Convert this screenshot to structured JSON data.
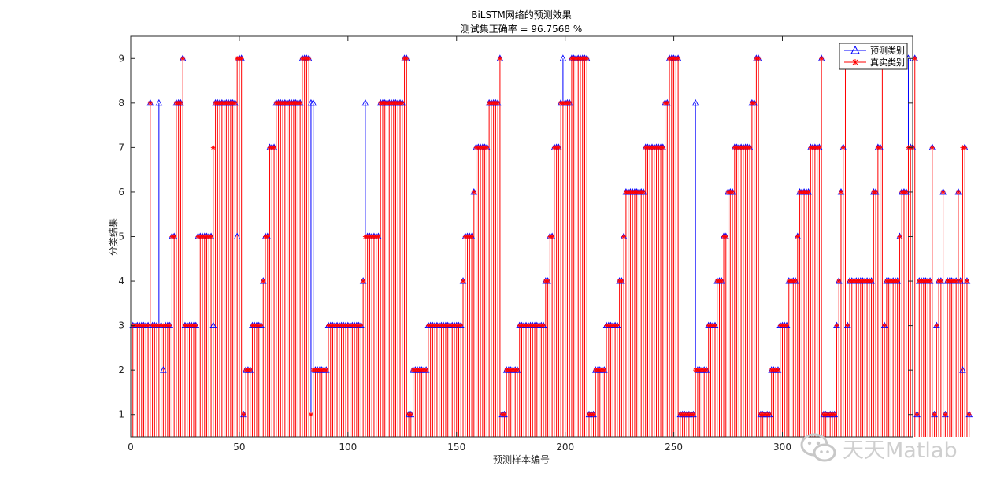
{
  "chart_data": {
    "type": "stem",
    "title": "BiLSTM网络的预测效果",
    "subtitle": "测试集正确率 = 96.7568 %",
    "xlabel": "预测样本编号",
    "ylabel": "分类结果",
    "xlim": [
      0,
      360
    ],
    "ylim": [
      0.5,
      9.5
    ],
    "xticks": [
      "0",
      "50",
      "100",
      "150",
      "200",
      "250",
      "300"
    ],
    "yticks": [
      "1",
      "2",
      "3",
      "4",
      "5",
      "6",
      "7",
      "8",
      "9"
    ],
    "grid": false,
    "legend_position": "top-right",
    "series": [
      {
        "name": "预测类别",
        "color": "#0000ff",
        "marker": "triangle",
        "values": [
          3,
          3,
          3,
          3,
          3,
          3,
          3,
          3,
          8,
          3,
          3,
          3,
          8,
          3,
          2,
          3,
          3,
          3,
          5,
          5,
          8,
          8,
          8,
          9,
          3,
          3,
          3,
          3,
          3,
          3,
          5,
          5,
          5,
          5,
          5,
          5,
          5,
          3,
          8,
          8,
          8,
          8,
          8,
          8,
          8,
          8,
          8,
          8,
          5,
          9,
          9,
          1,
          2,
          2,
          2,
          3,
          3,
          3,
          3,
          3,
          4,
          5,
          5,
          7,
          7,
          7,
          8,
          8,
          8,
          8,
          8,
          8,
          8,
          8,
          8,
          8,
          8,
          8,
          9,
          9,
          9,
          9,
          8,
          8,
          2,
          2,
          2,
          2,
          2,
          2,
          3,
          3,
          3,
          3,
          3,
          3,
          3,
          3,
          3,
          3,
          3,
          3,
          3,
          3,
          3,
          3,
          4,
          8,
          5,
          5,
          5,
          5,
          5,
          5,
          8,
          8,
          8,
          8,
          8,
          8,
          8,
          8,
          8,
          8,
          8,
          9,
          9,
          1,
          1,
          2,
          2,
          2,
          2,
          2,
          2,
          2,
          3,
          3,
          3,
          3,
          3,
          3,
          3,
          3,
          3,
          3,
          3,
          3,
          3,
          3,
          3,
          3,
          4,
          5,
          5,
          5,
          5,
          6,
          7,
          7,
          7,
          7,
          7,
          7,
          8,
          8,
          8,
          8,
          8,
          9,
          1,
          1,
          2,
          2,
          2,
          2,
          2,
          2,
          3,
          3,
          3,
          3,
          3,
          3,
          3,
          3,
          3,
          3,
          3,
          3,
          4,
          4,
          5,
          5,
          7,
          7,
          7,
          8,
          9,
          8,
          8,
          8,
          9,
          9,
          9,
          9,
          9,
          9,
          9,
          9,
          1,
          1,
          1,
          2,
          2,
          2,
          2,
          2,
          3,
          3,
          3,
          3,
          3,
          3,
          4,
          4,
          5,
          6,
          6,
          6,
          6,
          6,
          6,
          6,
          6,
          6,
          7,
          7,
          7,
          7,
          7,
          7,
          7,
          7,
          7,
          8,
          8,
          9,
          9,
          9,
          9,
          9,
          1,
          1,
          1,
          1,
          1,
          1,
          1,
          8,
          2,
          2,
          2,
          2,
          2,
          3,
          3,
          3,
          3,
          4,
          4,
          4,
          5,
          5,
          6,
          6,
          6,
          7,
          7,
          7,
          7,
          7,
          7,
          7,
          7,
          8,
          8,
          9,
          9,
          1,
          1,
          1,
          1,
          1,
          2,
          2,
          2,
          2,
          3,
          3,
          3,
          3,
          4,
          4,
          4,
          4,
          5,
          6,
          6,
          6,
          6,
          6,
          7,
          7,
          7,
          7,
          7,
          9,
          1,
          1,
          1,
          1,
          1,
          1,
          3,
          4,
          6,
          7,
          9,
          3,
          4,
          4,
          4,
          4,
          4,
          4,
          4,
          4,
          4,
          4,
          4,
          6,
          6,
          7,
          7,
          9,
          3,
          4,
          4,
          4,
          4,
          4,
          4,
          5,
          6,
          6,
          6,
          9,
          7,
          7,
          9,
          1,
          4,
          4,
          4,
          4,
          4,
          4,
          7,
          1,
          3,
          4,
          4,
          6,
          1,
          4,
          4,
          4,
          4,
          4,
          6,
          4,
          2,
          7,
          4,
          1
        ]
      },
      {
        "name": "真实类别",
        "color": "#ff0000",
        "marker": "asterisk",
        "values": [
          3,
          3,
          3,
          3,
          3,
          3,
          3,
          3,
          8,
          3,
          3,
          3,
          3,
          3,
          3,
          3,
          3,
          3,
          5,
          5,
          8,
          8,
          8,
          9,
          3,
          3,
          3,
          3,
          3,
          3,
          5,
          5,
          5,
          5,
          5,
          5,
          5,
          7,
          8,
          8,
          8,
          8,
          8,
          8,
          8,
          8,
          8,
          8,
          9,
          9,
          9,
          1,
          2,
          2,
          2,
          3,
          3,
          3,
          3,
          3,
          4,
          5,
          5,
          7,
          7,
          7,
          8,
          8,
          8,
          8,
          8,
          8,
          8,
          8,
          8,
          8,
          8,
          8,
          9,
          9,
          9,
          9,
          1,
          2,
          2,
          2,
          2,
          2,
          2,
          2,
          3,
          3,
          3,
          3,
          3,
          3,
          3,
          3,
          3,
          3,
          3,
          3,
          3,
          3,
          3,
          3,
          4,
          5,
          5,
          5,
          5,
          5,
          5,
          5,
          8,
          8,
          8,
          8,
          8,
          8,
          8,
          8,
          8,
          8,
          8,
          9,
          9,
          1,
          1,
          2,
          2,
          2,
          2,
          2,
          2,
          2,
          3,
          3,
          3,
          3,
          3,
          3,
          3,
          3,
          3,
          3,
          3,
          3,
          3,
          3,
          3,
          3,
          4,
          5,
          5,
          5,
          5,
          6,
          7,
          7,
          7,
          7,
          7,
          7,
          8,
          8,
          8,
          8,
          8,
          9,
          1,
          1,
          2,
          2,
          2,
          2,
          2,
          2,
          3,
          3,
          3,
          3,
          3,
          3,
          3,
          3,
          3,
          3,
          3,
          3,
          4,
          4,
          5,
          5,
          7,
          7,
          7,
          8,
          8,
          8,
          8,
          8,
          9,
          9,
          9,
          9,
          9,
          9,
          9,
          9,
          1,
          1,
          1,
          2,
          2,
          2,
          2,
          2,
          3,
          3,
          3,
          3,
          3,
          3,
          4,
          4,
          5,
          6,
          6,
          6,
          6,
          6,
          6,
          6,
          6,
          6,
          7,
          7,
          7,
          7,
          7,
          7,
          7,
          7,
          7,
          8,
          8,
          9,
          9,
          9,
          9,
          9,
          1,
          1,
          1,
          1,
          1,
          1,
          1,
          2,
          2,
          2,
          2,
          2,
          2,
          3,
          3,
          3,
          3,
          4,
          4,
          4,
          5,
          5,
          6,
          6,
          6,
          7,
          7,
          7,
          7,
          7,
          7,
          7,
          7,
          8,
          8,
          9,
          9,
          1,
          1,
          1,
          1,
          1,
          2,
          2,
          2,
          2,
          3,
          3,
          3,
          3,
          4,
          4,
          4,
          4,
          5,
          6,
          6,
          6,
          6,
          6,
          7,
          7,
          7,
          7,
          7,
          9,
          1,
          1,
          1,
          1,
          1,
          1,
          3,
          4,
          6,
          7,
          9,
          3,
          4,
          4,
          4,
          4,
          4,
          4,
          4,
          4,
          4,
          4,
          4,
          6,
          6,
          7,
          7,
          9,
          3,
          4,
          4,
          4,
          4,
          4,
          4,
          5,
          6,
          6,
          6,
          7,
          7,
          7,
          9,
          1,
          4,
          4,
          4,
          4,
          4,
          4,
          7,
          1,
          3,
          4,
          4,
          6,
          1,
          4,
          4,
          4,
          4,
          4,
          6,
          4,
          7,
          7,
          4,
          1
        ]
      }
    ]
  },
  "watermark": {
    "text": "天天Matlab",
    "icon": "wechat-logo-icon"
  }
}
